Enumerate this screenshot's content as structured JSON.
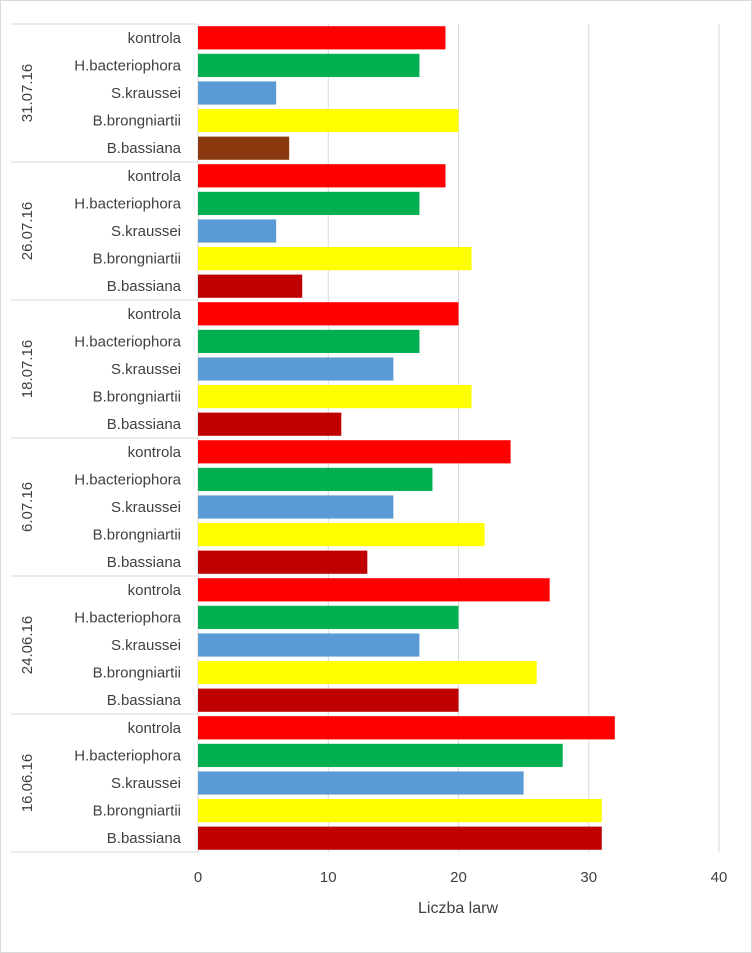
{
  "chart_data": {
    "type": "bar",
    "orientation": "horizontal",
    "xlabel": "Liczba larw",
    "xlim": [
      0,
      40
    ],
    "x_ticks": [
      0,
      10,
      20,
      30,
      40
    ],
    "grid": "vertical gridlines",
    "groups": [
      {
        "date": "31.07.16",
        "bars": [
          {
            "label": "kontrola",
            "value": 19,
            "color": "#ff0000"
          },
          {
            "label": "H.bacteriophora",
            "value": 17,
            "color": "#00b050"
          },
          {
            "label": "S.kraussei",
            "value": 6,
            "color": "#5b9bd5"
          },
          {
            "label": "B.brongniartii",
            "value": 20,
            "color": "#ffff00"
          },
          {
            "label": "B.bassiana",
            "value": 7,
            "color": "#8b3a0f"
          }
        ]
      },
      {
        "date": "26.07.16",
        "bars": [
          {
            "label": "kontrola",
            "value": 19,
            "color": "#ff0000"
          },
          {
            "label": "H.bacteriophora",
            "value": 17,
            "color": "#00b050"
          },
          {
            "label": "S.kraussei",
            "value": 6,
            "color": "#5b9bd5"
          },
          {
            "label": "B.brongniartii",
            "value": 21,
            "color": "#ffff00"
          },
          {
            "label": "B.bassiana",
            "value": 8,
            "color": "#c00000"
          }
        ]
      },
      {
        "date": "18.07.16",
        "bars": [
          {
            "label": "kontrola",
            "value": 20,
            "color": "#ff0000"
          },
          {
            "label": "H.bacteriophora",
            "value": 17,
            "color": "#00b050"
          },
          {
            "label": "S.kraussei",
            "value": 15,
            "color": "#5b9bd5"
          },
          {
            "label": "B.brongniartii",
            "value": 21,
            "color": "#ffff00"
          },
          {
            "label": "B.bassiana",
            "value": 11,
            "color": "#c00000"
          }
        ]
      },
      {
        "date": "6.07.16",
        "bars": [
          {
            "label": "kontrola",
            "value": 24,
            "color": "#ff0000"
          },
          {
            "label": "H.bacteriophora",
            "value": 18,
            "color": "#00b050"
          },
          {
            "label": "S.kraussei",
            "value": 15,
            "color": "#5b9bd5"
          },
          {
            "label": "B.brongniartii",
            "value": 22,
            "color": "#ffff00"
          },
          {
            "label": "B.bassiana",
            "value": 13,
            "color": "#c00000"
          }
        ]
      },
      {
        "date": "24.06.16",
        "bars": [
          {
            "label": "kontrola",
            "value": 27,
            "color": "#ff0000"
          },
          {
            "label": "H.bacteriophora",
            "value": 20,
            "color": "#00b050"
          },
          {
            "label": "S.kraussei",
            "value": 17,
            "color": "#5b9bd5"
          },
          {
            "label": "B.brongniartii",
            "value": 26,
            "color": "#ffff00"
          },
          {
            "label": "B.bassiana",
            "value": 20,
            "color": "#c00000"
          }
        ]
      },
      {
        "date": "16.06.16",
        "bars": [
          {
            "label": "kontrola",
            "value": 32,
            "color": "#ff0000"
          },
          {
            "label": "H.bacteriophora",
            "value": 28,
            "color": "#00b050"
          },
          {
            "label": "S.kraussei",
            "value": 25,
            "color": "#5b9bd5"
          },
          {
            "label": "B.brongniartii",
            "value": 31,
            "color": "#ffff00"
          },
          {
            "label": "B.bassiana",
            "value": 31,
            "color": "#c00000"
          }
        ]
      }
    ]
  }
}
